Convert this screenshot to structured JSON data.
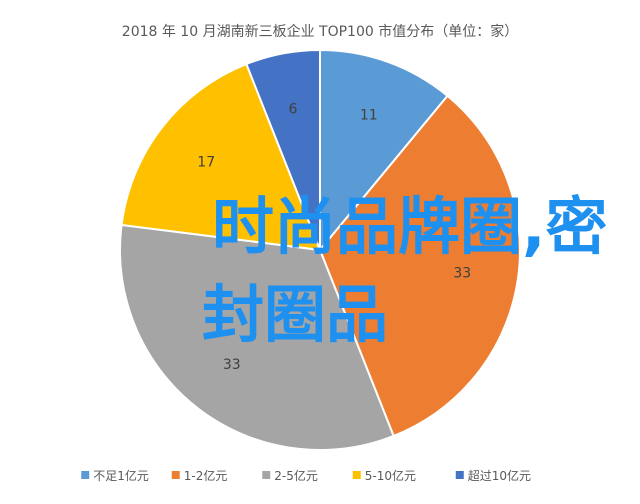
{
  "chart_data": {
    "type": "pie",
    "title": "2018 年 10 月湖南新三板企业 TOP100 市值分布（单位：家）",
    "categories": [
      "不足1亿元",
      "1-2亿元",
      "2-5亿元",
      "5-10亿元",
      "超过10亿元"
    ],
    "values": [
      11,
      33,
      33,
      17,
      6
    ],
    "colors": [
      "#5b9bd5",
      "#ed7d31",
      "#a5a5a5",
      "#ffc000",
      "#4472c4"
    ],
    "legend_position": "bottom",
    "start_angle": "12 o'clock, clockwise"
  },
  "overlay": {
    "line1": "时尚品牌圈,密",
    "line2": "封圈品",
    "color": "#1e90f0"
  }
}
